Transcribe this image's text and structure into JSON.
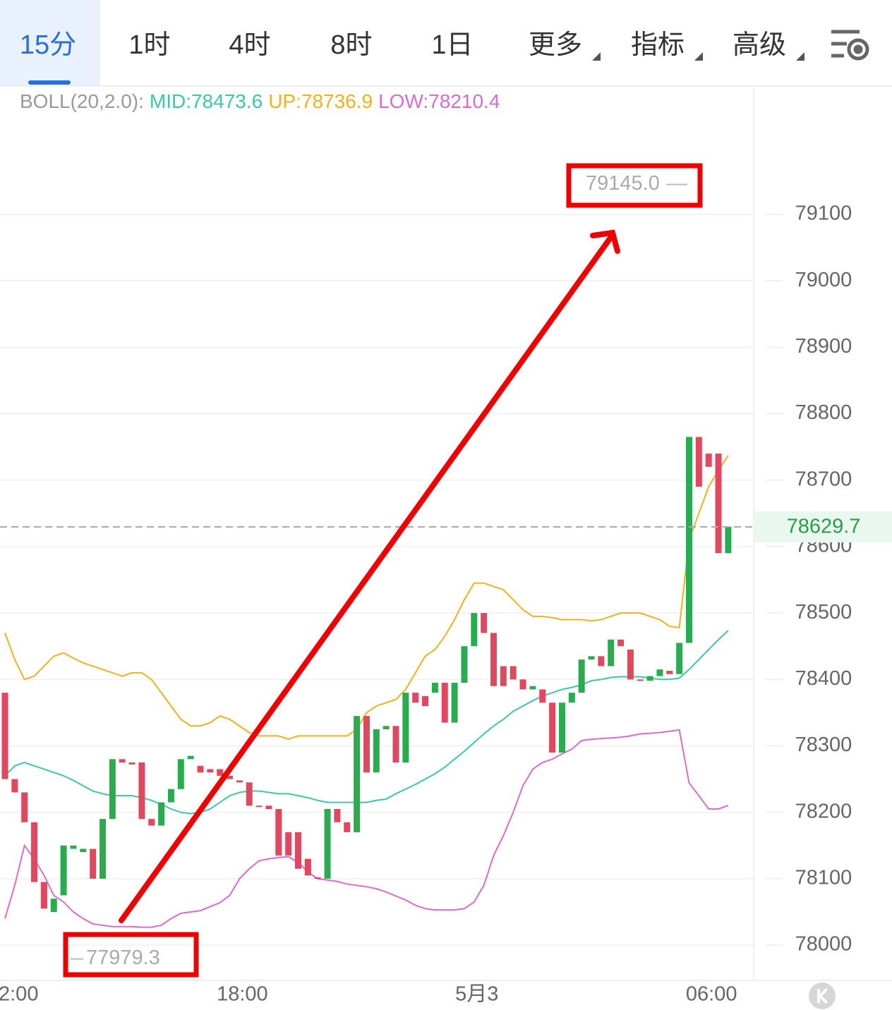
{
  "tabs": {
    "items": [
      "15分",
      "1时",
      "4时",
      "8时",
      "1日",
      "更多",
      "指标",
      "高级"
    ],
    "active": 0
  },
  "chart_data": {
    "type": "candlestick",
    "indicator": "BOLL(20,2.0):",
    "categories": [
      "2:00",
      null,
      null,
      null,
      null,
      null,
      null,
      null,
      null,
      null,
      null,
      null,
      null,
      null,
      null,
      null,
      null,
      null,
      null,
      null,
      null,
      null,
      null,
      null,
      "18:00",
      null,
      null,
      null,
      null,
      null,
      null,
      null,
      null,
      null,
      null,
      null,
      null,
      null,
      null,
      null,
      null,
      null,
      null,
      null,
      null,
      null,
      null,
      null,
      "5月3",
      null,
      null,
      null,
      null,
      null,
      null,
      null,
      null,
      null,
      null,
      null,
      null,
      null,
      null,
      null,
      null,
      null,
      null,
      null,
      null,
      null,
      null,
      null,
      "06:00",
      null,
      null
    ],
    "up_color": "#2bab4f",
    "down_color": "#e0485f",
    "open": [
      78380,
      78250,
      78230,
      78185,
      78095,
      78050,
      78075,
      78145,
      78140,
      78145,
      78100,
      78190,
      78280,
      78275,
      78275,
      78190,
      78180,
      78215,
      78235,
      78280,
      78270,
      78265,
      78265,
      78255,
      78248,
      78245,
      78210,
      78210,
      78205,
      78170,
      78170,
      78130,
      78102,
      78100,
      78205,
      78185,
      78170,
      78345,
      78260,
      78325,
      78330,
      78275,
      78380,
      78375,
      78380,
      78395,
      78335,
      78395,
      78450,
      78500,
      78470,
      78420,
      78420,
      78400,
      78385,
      78385,
      78365,
      78290,
      78365,
      78380,
      78430,
      78435,
      78420,
      78460,
      78445,
      78400,
      78398,
      78405,
      78413,
      78408,
      78455,
      78765,
      78740,
      78740,
      78590
    ],
    "high": {
      "value": 79145,
      "label": "79145.0"
    },
    "low": 77979.3,
    "close": [
      78250,
      78230,
      78185,
      78095,
      78055,
      78070,
      78150,
      78150,
      78145,
      78100,
      78190,
      78280,
      78275,
      78272,
      78190,
      78180,
      78215,
      78235,
      78280,
      78285,
      78260,
      78260,
      78255,
      78250,
      78245,
      78210,
      78208,
      78205,
      78135,
      78135,
      78115,
      78105,
      78100,
      78205,
      78185,
      78170,
      78345,
      78260,
      78325,
      78330,
      78275,
      78380,
      78365,
      78360,
      78395,
      78335,
      78395,
      78450,
      78500,
      78470,
      78390,
      78390,
      78400,
      78385,
      78390,
      78365,
      78290,
      78365,
      78380,
      78430,
      78435,
      78420,
      78460,
      78450,
      78400,
      78398,
      78405,
      78415,
      78408,
      78455,
      78765,
      78690,
      78720,
      78590,
      78629.7
    ],
    "series": [
      {
        "name": "MID:",
        "color": "#3cc8a6",
        "values": [
          78255,
          78270,
          78275,
          78270,
          78265,
          78260,
          78255,
          78248,
          78240,
          78232,
          78228,
          78225,
          78225,
          78225,
          78222,
          78218,
          78212,
          78205,
          78200,
          78198,
          78200,
          78205,
          78215,
          78225,
          78230,
          78232,
          78232,
          78230,
          78228,
          78228,
          78225,
          78222,
          78218,
          78215,
          78215,
          78215,
          78215,
          78215,
          78218,
          78220,
          78228,
          78235,
          78242,
          78250,
          78258,
          78268,
          78280,
          78292,
          78305,
          78318,
          78330,
          78340,
          78352,
          78360,
          78368,
          78375,
          78380,
          78385,
          78388,
          78392,
          78398,
          78400,
          78403,
          78404,
          78404,
          78404,
          78402,
          78400,
          78400,
          78402,
          78415,
          78430,
          78445,
          78460,
          78473.6
        ]
      },
      {
        "name": "UP:",
        "color": "#efb21e",
        "values": [
          78470,
          78430,
          78400,
          78405,
          78420,
          78435,
          78440,
          78432,
          78425,
          78420,
          78415,
          78410,
          78405,
          78410,
          78410,
          78400,
          78380,
          78360,
          78340,
          78330,
          78330,
          78335,
          78345,
          78340,
          78330,
          78320,
          78315,
          78315,
          78315,
          78310,
          78315,
          78315,
          78315,
          78315,
          78315,
          78315,
          78325,
          78350,
          78360,
          78365,
          78370,
          78385,
          78410,
          78435,
          78445,
          78465,
          78490,
          78520,
          78545,
          78545,
          78540,
          78535,
          78520,
          78505,
          78495,
          78495,
          78493,
          78490,
          78490,
          78490,
          78488,
          78490,
          78495,
          78500,
          78500,
          78500,
          78495,
          78490,
          78480,
          78478,
          78610,
          78650,
          78690,
          78715,
          78736.9
        ]
      },
      {
        "name": "LOW:",
        "color": "#d66dcf",
        "values": [
          78040,
          78090,
          78150,
          78130,
          78105,
          78075,
          78065,
          78050,
          78040,
          78032,
          78030,
          78028,
          78028,
          78028,
          78027,
          78027,
          78030,
          78040,
          78048,
          78050,
          78052,
          78058,
          78064,
          78075,
          78100,
          78115,
          78127,
          78130,
          78132,
          78133,
          78125,
          78110,
          78100,
          78098,
          78096,
          78092,
          78090,
          78088,
          78085,
          78080,
          78074,
          78068,
          78060,
          78055,
          78053,
          78053,
          78053,
          78055,
          78065,
          78090,
          78135,
          78165,
          78200,
          78240,
          78265,
          78275,
          78280,
          78288,
          78295,
          78308,
          78310,
          78311,
          78312,
          78313,
          78315,
          78318,
          78319,
          78320,
          78322,
          78324,
          78244,
          78225,
          78205,
          78205,
          78210.4
        ]
      }
    ],
    "ylim": [
      77947,
      79290
    ],
    "yticks": [
      78000,
      78100,
      78200,
      78300,
      78400,
      78500,
      78600,
      78700,
      78800,
      78900,
      79000,
      79100
    ],
    "grid": true,
    "last_price": 78629.7
  }
}
